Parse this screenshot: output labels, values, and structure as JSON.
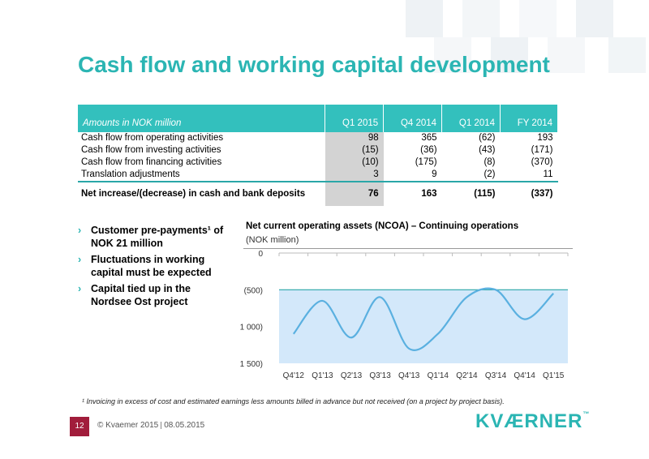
{
  "slide": {
    "title": "Cash flow and working capital development",
    "page_number": "12",
    "copyright": "© Kvaemer 2015",
    "date": "08.05.2015",
    "logo_text": "KVÆRNER",
    "logo_mark": "™"
  },
  "table": {
    "header": {
      "label": "Amounts in NOK million",
      "columns": [
        "Q1 2015",
        "Q4 2014",
        "Q1 2014",
        "FY 2014"
      ]
    },
    "rows": [
      {
        "label": "Cash flow from operating activities",
        "values": [
          "98",
          "365",
          "(62)",
          "193"
        ]
      },
      {
        "label": "Cash flow from investing activities",
        "values": [
          "(15)",
          "(36)",
          "(43)",
          "(171)"
        ]
      },
      {
        "label": "Cash flow from financing activities",
        "values": [
          "(10)",
          "(175)",
          "(8)",
          "(370)"
        ]
      },
      {
        "label": "Translation adjustments",
        "values": [
          "3",
          "9",
          "(2)",
          "11"
        ]
      }
    ],
    "total": {
      "label": "Net increase/(decrease) in cash and bank deposits",
      "values": [
        "76",
        "163",
        "(115)",
        "(337)"
      ]
    }
  },
  "bullets": [
    "Customer pre-payments¹ of NOK 21 million",
    "Fluctuations in working capital must be expected",
    "Capital tied up in the Nordsee Ost project"
  ],
  "chart_data": {
    "type": "line",
    "title": "Net current operating assets (NCOA) – Continuing operations",
    "subtitle": "(NOK million)",
    "categories": [
      "Q4'12",
      "Q1'13",
      "Q2'13",
      "Q3'13",
      "Q4'13",
      "Q1'14",
      "Q2'14",
      "Q3'14",
      "Q4'14",
      "Q1'15"
    ],
    "values": [
      -1100,
      -650,
      -1150,
      -600,
      -1300,
      -1100,
      -600,
      -500,
      -900,
      -550
    ],
    "ylim": [
      -1500,
      0
    ],
    "yticks": [
      0,
      -500,
      -1000,
      -1500
    ],
    "ytick_labels": [
      "0",
      "(500)",
      "(1 000)",
      "(1 500)"
    ],
    "shaded_band": [
      -1500,
      -500
    ],
    "colors": {
      "line": "#5ab0e0",
      "band": "#d3e8fa",
      "band_edge": "#2aa7a8"
    }
  },
  "footnote": "¹ Invoicing in excess of cost and estimated earnings less amounts billed in advance but not received (on a project by project basis)."
}
